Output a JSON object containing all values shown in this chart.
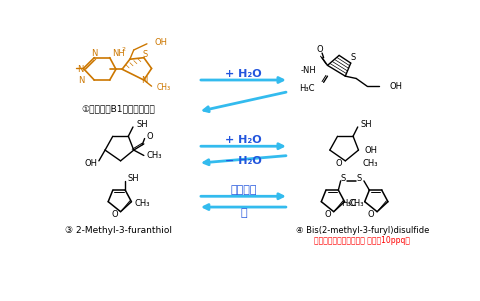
{
  "bg_color": "#ffffff",
  "arrow_color": "#33bbee",
  "struct_color": "#000000",
  "orange_color": "#cc7700",
  "red_color": "#ff0000",
  "blue_color": "#2255dd",
  "label1": "①ビタミンB1（チアミン）",
  "label2": "③ 2-Methyl-3-furanthiol",
  "label3": "④ Bis(2-methyl-3-furyl)disulfide",
  "label3b": "（史上最低の閾値物質？ 閾値：10ppq）",
  "row1_fwd": "+ H₂O",
  "row2_fwd": "+ H₂O",
  "row2_rev": "− H₂O",
  "row3_fwd": "酸化・光",
  "row3_rev": "熱"
}
